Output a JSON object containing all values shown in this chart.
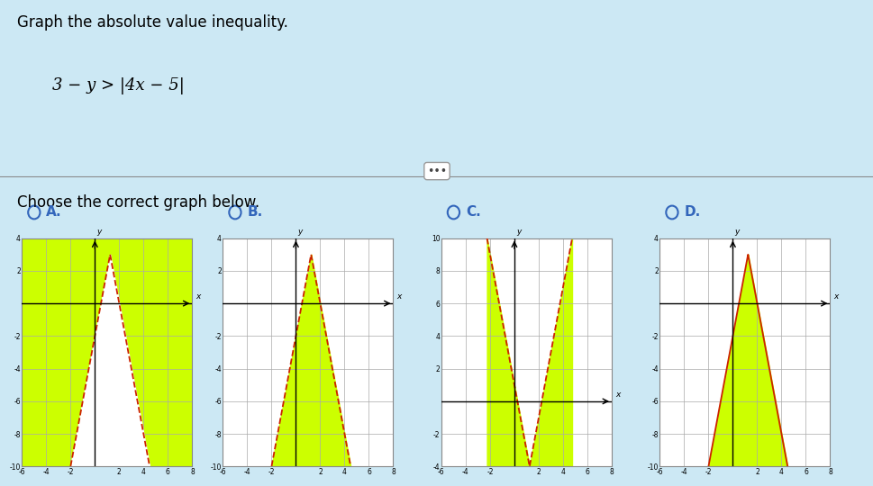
{
  "bg_color": "#cce8f4",
  "title_text": "Graph the absolute value inequality.",
  "inequality": "3 − y > |4x − 5|",
  "choose_text": "Choose the correct graph below.",
  "graphs": [
    {
      "label": "A.",
      "xlim": [
        -6,
        8
      ],
      "ylim": [
        -10,
        4
      ],
      "vertex_x": 1.25,
      "vertex_y": 3,
      "slope": 4,
      "fill_outside": true,
      "fill_color": "#ccff00",
      "line_color": "#cc2200",
      "dashed": true,
      "tick_step": 2,
      "xaxis_y": 0,
      "yaxis_x": 0
    },
    {
      "label": "B.",
      "xlim": [
        -6,
        8
      ],
      "ylim": [
        -10,
        4
      ],
      "vertex_x": 1.25,
      "vertex_y": 3,
      "slope": 4,
      "fill_outside": false,
      "fill_color": "#ccff00",
      "line_color": "#cc2200",
      "dashed": true,
      "tick_step": 2,
      "xaxis_y": 0,
      "yaxis_x": 0
    },
    {
      "label": "C.",
      "xlim": [
        -6,
        8
      ],
      "ylim": [
        -4,
        10
      ],
      "vertex_x": 1.25,
      "vertex_y": -4,
      "slope": 4,
      "fill_outside": false,
      "fill_color": "#ccff00",
      "line_color": "#cc2200",
      "dashed": true,
      "tick_step": 2,
      "xaxis_y": 0,
      "yaxis_x": 0
    },
    {
      "label": "D.",
      "xlim": [
        -6,
        8
      ],
      "ylim": [
        -10,
        4
      ],
      "vertex_x": 1.25,
      "vertex_y": 3,
      "slope": 4,
      "fill_outside": false,
      "fill_color": "#ccff00",
      "line_color": "#cc2200",
      "dashed": false,
      "tick_step": 2,
      "xaxis_y": 0,
      "yaxis_x": 0
    }
  ]
}
